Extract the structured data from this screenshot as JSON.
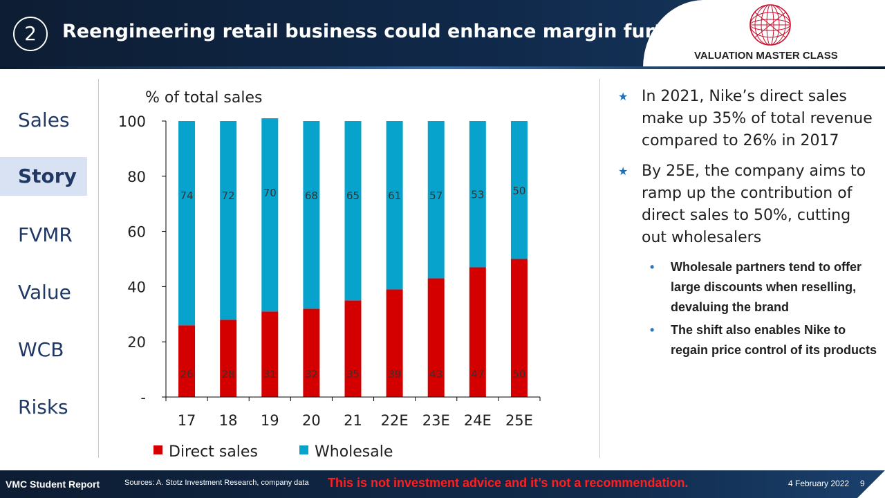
{
  "header": {
    "section_number": "2",
    "title": "Reengineering retail business could enhance margin further",
    "brand": "VALUATION MASTER CLASS"
  },
  "nav": {
    "items": [
      {
        "label": "Sales",
        "active": false
      },
      {
        "label": "Story",
        "active": true
      },
      {
        "label": "FVMR",
        "active": false
      },
      {
        "label": "Value",
        "active": false
      },
      {
        "label": "WCB",
        "active": false
      },
      {
        "label": "Risks",
        "active": false
      }
    ]
  },
  "chart_data": {
    "type": "bar",
    "stacked": true,
    "title": "% of total sales",
    "categories": [
      "17",
      "18",
      "19",
      "20",
      "21",
      "22E",
      "23E",
      "24E",
      "25E"
    ],
    "series": [
      {
        "name": "Direct sales",
        "color": "#d40000",
        "values": [
          26,
          28,
          31,
          32,
          35,
          39,
          43,
          47,
          50
        ]
      },
      {
        "name": "Wholesale",
        "color": "#07a3cc",
        "values": [
          74,
          72,
          70,
          68,
          65,
          61,
          57,
          53,
          50
        ]
      }
    ],
    "ylim": [
      0,
      100
    ],
    "yticks": [
      "-",
      "20",
      "40",
      "60",
      "80",
      "100"
    ],
    "grid": false,
    "legend": "bottom"
  },
  "bullets": [
    {
      "level": 1,
      "text": "In 2021, Nike’s direct sales make up 35% of total revenue compared to 26% in 2017"
    },
    {
      "level": 1,
      "text": "By 25E, the company aims to ramp up the contribution of direct sales to 50%, cutting out wholesalers"
    },
    {
      "level": 2,
      "text": "Wholesale partners tend to offer large discounts when reselling, devaluing the brand"
    },
    {
      "level": 2,
      "text": "The shift also enables Nike to regain price control of its products"
    }
  ],
  "footer": {
    "report": "VMC Student Report",
    "sources": "Sources: A. Stotz Investment Research, company data",
    "disclaimer": "This is not investment advice and it’s not a recommendation.",
    "date": "4 February 2022",
    "page": "9"
  },
  "colors": {
    "header_bg": "#0d1d33",
    "nav_text": "#1f3864",
    "nav_active_bg": "#d9e2f3",
    "direct_sales": "#d40000",
    "wholesale": "#07a3cc",
    "disclaimer": "#ff1f1f"
  }
}
